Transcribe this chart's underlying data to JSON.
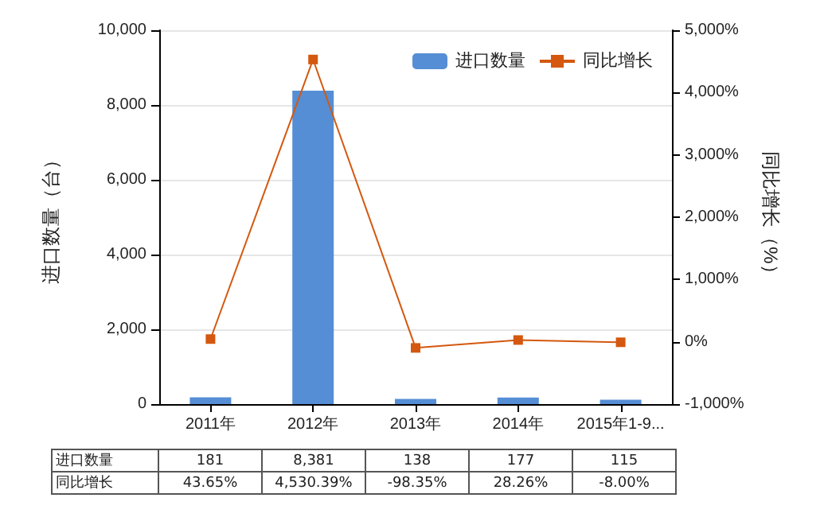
{
  "chart_data": {
    "type": "bar",
    "categories": [
      "2011年",
      "2012年",
      "2013年",
      "2014年",
      "2015年1-9..."
    ],
    "series": [
      {
        "name": "进口数量",
        "color": "#558ed5",
        "values": [
          181,
          8381,
          138,
          177,
          115
        ],
        "value_labels": [
          "181",
          "8,381",
          "138",
          "177",
          "115"
        ]
      },
      {
        "name": "同比增长",
        "type": "line",
        "axis": "y2",
        "color": "#d4580f",
        "values": [
          43.65,
          4530.39,
          -98.35,
          28.26,
          -8.0
        ],
        "value_labels": [
          "43.65%",
          "4,530.39%",
          "-98.35%",
          "28.26%",
          "-8.00%"
        ]
      }
    ],
    "ylabel": "进口数量（台）",
    "y2label": "同比增长（%）",
    "ylim": [
      0,
      10000
    ],
    "yticks": [
      0,
      {
        "value": 2000,
        "label": "2,000"
      },
      {
        "value": 4000,
        "label": "4,000"
      },
      {
        "value": 6000,
        "label": "6,000"
      },
      {
        "value": 8000,
        "label": "8,000"
      },
      {
        "value": 10000,
        "label": "10,000"
      }
    ],
    "y2lim": [
      -1000,
      5000
    ],
    "y2ticks": [
      {
        "value": -1000,
        "label": "-1,000%"
      },
      {
        "value": 0,
        "label": "0%"
      },
      {
        "value": 1000,
        "label": "1,000%"
      },
      {
        "value": 2000,
        "label": "2,000%"
      },
      {
        "value": 3000,
        "label": "3,000%"
      },
      {
        "value": 4000,
        "label": "4,000%"
      },
      {
        "value": 5000,
        "label": "5,000%"
      }
    ],
    "grid": "y",
    "legend": "top right",
    "marker": "square",
    "line_style": "solid"
  }
}
